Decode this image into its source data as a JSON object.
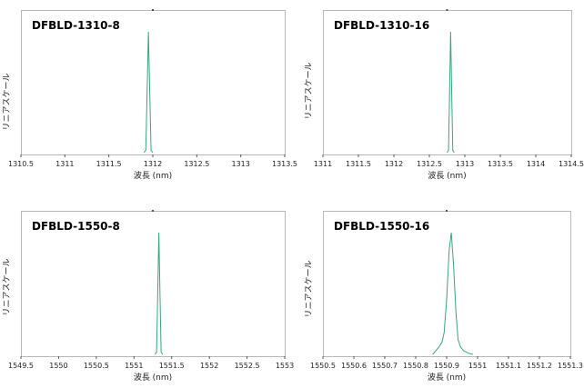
{
  "chart_data": [
    {
      "type": "line",
      "title": "DFBLD-1310-8",
      "xlabel": "波長 (nm)",
      "ylabel": "リニアスケール",
      "xlim": [
        1310.5,
        1313.5
      ],
      "ticks": [
        "1310.5",
        "1311",
        "1311.5",
        "1312",
        "1312.5",
        "1313",
        "1313.5"
      ],
      "grid": false,
      "series": [
        {
          "x": [
            1311.9,
            1311.92,
            1311.935,
            1311.95,
            1311.965,
            1311.98,
            1312.0
          ],
          "y": [
            0.0,
            0.02,
            0.5,
            1.0,
            0.5,
            0.02,
            0.0
          ]
        }
      ]
    },
    {
      "type": "line",
      "title": "DFBLD-1310-16",
      "xlabel": "波長 (nm)",
      "ylabel": "リニアスケール",
      "xlim": [
        1311,
        1314.5
      ],
      "ticks": [
        "1311",
        "1311.5",
        "1312",
        "1312.5",
        "1313",
        "1313.5",
        "1314",
        "1314.5"
      ],
      "grid": false,
      "series": [
        {
          "x": [
            1312.75,
            1312.77,
            1312.785,
            1312.8,
            1312.815,
            1312.83,
            1312.85
          ],
          "y": [
            0.0,
            0.02,
            0.5,
            1.0,
            0.5,
            0.02,
            0.0
          ]
        }
      ]
    },
    {
      "type": "line",
      "title": "DFBLD-1550-8",
      "xlabel": "波長 (nm)",
      "ylabel": "リニアスケール",
      "xlim": [
        1549.5,
        1553
      ],
      "ticks": [
        "1549.5",
        "1550",
        "1550.5",
        "1551",
        "1551.5",
        "1552",
        "1552.5",
        "1553"
      ],
      "grid": false,
      "series": [
        {
          "x": [
            1551.28,
            1551.3,
            1551.315,
            1551.33,
            1551.345,
            1551.36,
            1551.38
          ],
          "y": [
            0.0,
            0.02,
            0.5,
            1.0,
            0.5,
            0.02,
            0.0
          ]
        }
      ]
    },
    {
      "type": "line",
      "title": "DFBLD-1550-16",
      "xlabel": "波長 (nm)",
      "ylabel": "リニアスケール",
      "xlim": [
        1550.5,
        1551.3
      ],
      "ticks": [
        "1550.5",
        "1550.6",
        "1550.7",
        "1550.8",
        "1550.9",
        "1551",
        "1551.1",
        "1551.2",
        "1551.3"
      ],
      "grid": false,
      "series": [
        {
          "x": [
            1550.855,
            1550.865,
            1550.875,
            1550.885,
            1550.892,
            1550.9,
            1550.908,
            1550.915,
            1550.922,
            1550.93,
            1550.937,
            1550.945,
            1550.955,
            1550.97,
            1550.985
          ],
          "y": [
            0.0,
            0.03,
            0.06,
            0.1,
            0.18,
            0.45,
            0.85,
            1.0,
            0.75,
            0.35,
            0.12,
            0.06,
            0.03,
            0.01,
            0.0
          ]
        }
      ]
    }
  ]
}
